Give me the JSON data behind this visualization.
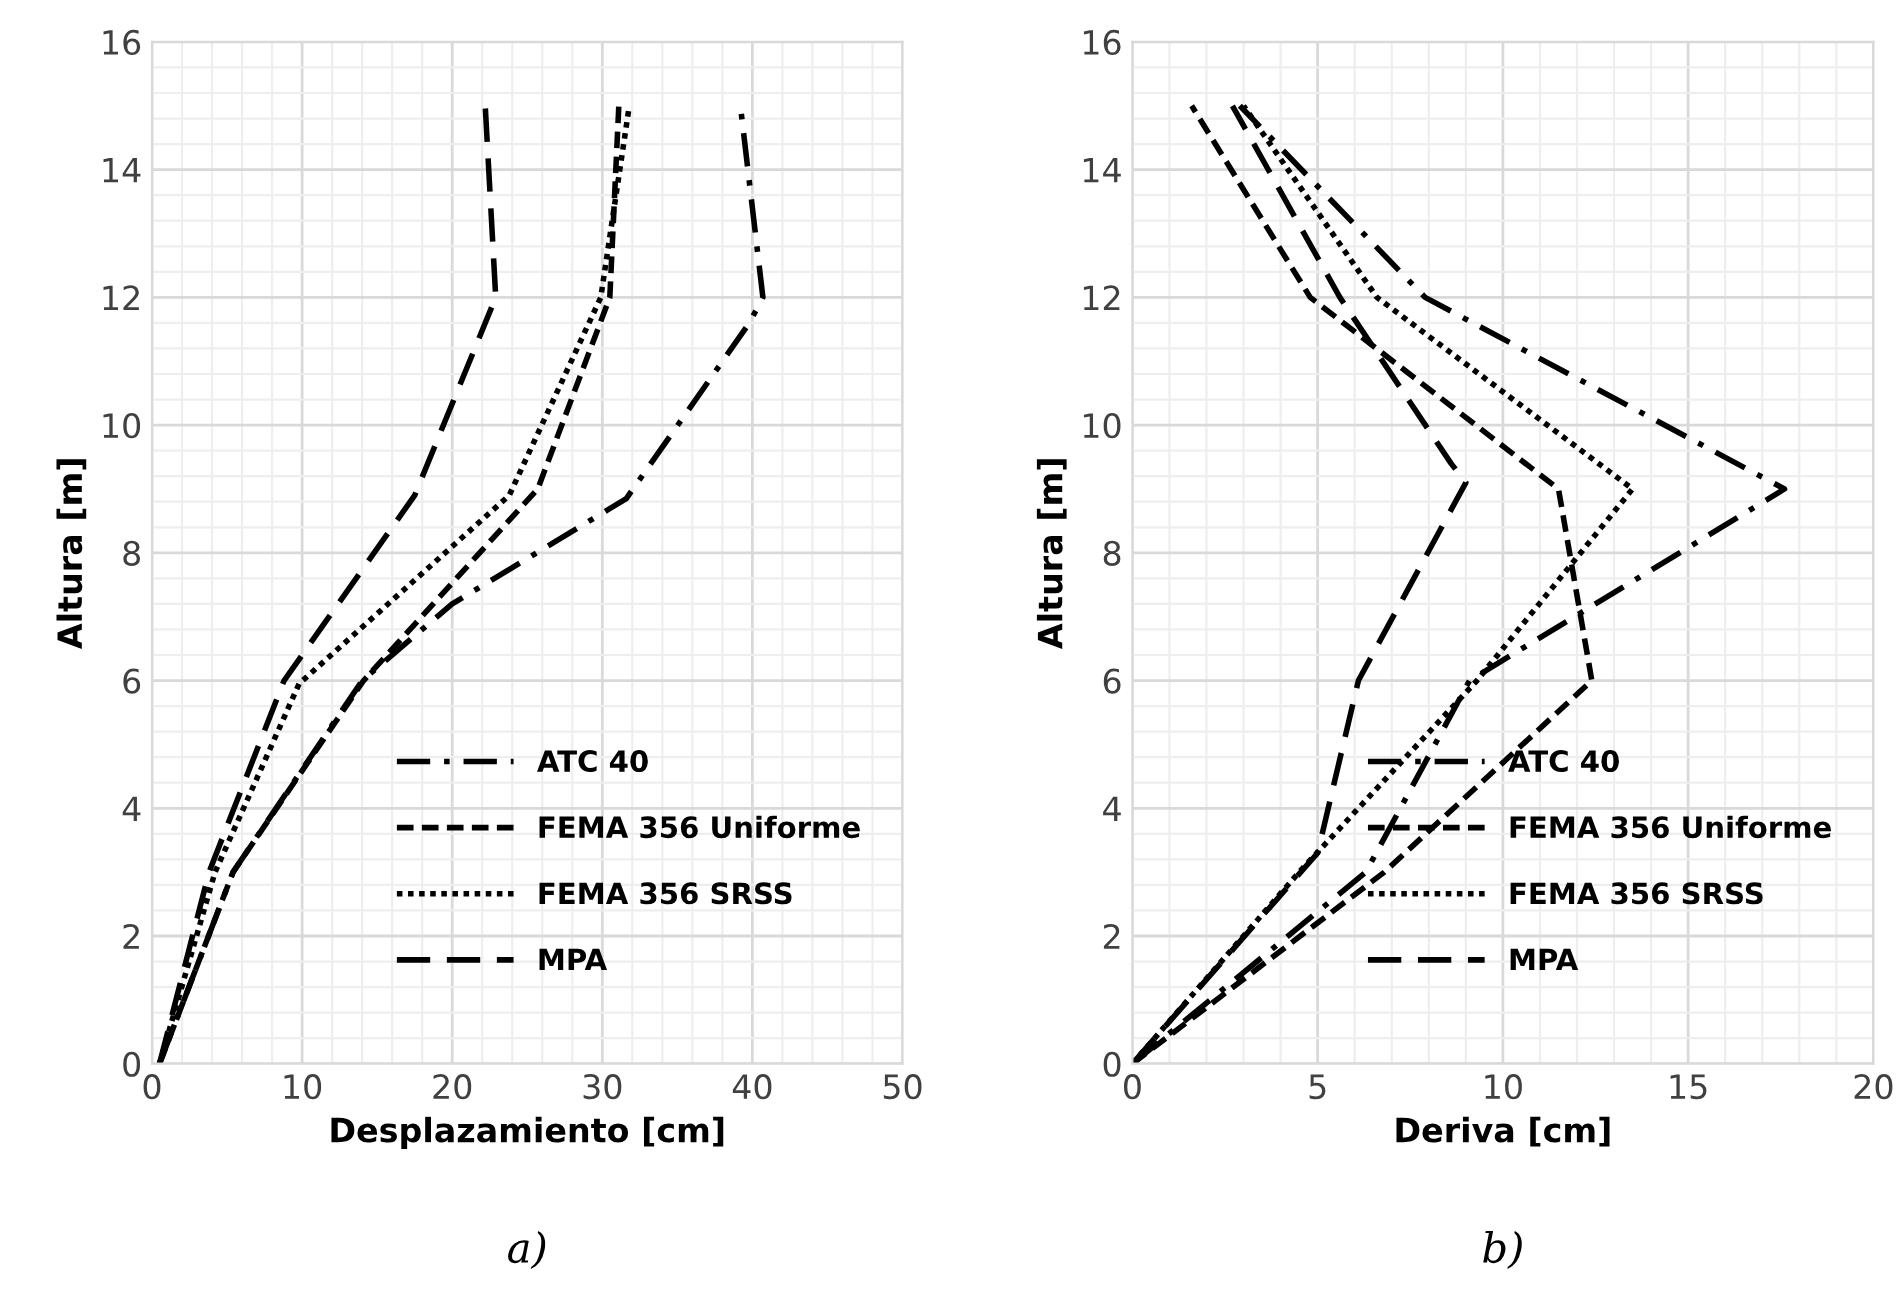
{
  "chart_data": [
    {
      "type": "line",
      "xlabel": "Desplazamiento [cm]",
      "ylabel": "Altura [m]",
      "xlim": [
        0,
        50
      ],
      "xticks": [
        0,
        10,
        20,
        30,
        40,
        50
      ],
      "ylim": [
        0,
        16
      ],
      "yticks": [
        0,
        2,
        4,
        6,
        8,
        10,
        12,
        14,
        16
      ],
      "grid": true,
      "legend": "bottom right",
      "marker": "none",
      "annotations": [
        "a)"
      ],
      "series": [
        {
          "name": "ATC 40",
          "color": "#000000",
          "line_style": "dashdot",
          "x": [
            0.5,
            5.4,
            14.0,
            20.0,
            31.6,
            39.8,
            40.7,
            39.2
          ],
          "values": [
            0,
            3,
            6,
            7.2,
            8.85,
            11.6,
            12,
            15
          ]
        },
        {
          "name": "FEMA 356 Uniforme",
          "color": "#000000",
          "line_style": "dashed",
          "x": [
            0.5,
            5.4,
            14.1,
            25.7,
            30.5,
            31.1
          ],
          "values": [
            0,
            3,
            6,
            9,
            12,
            15
          ]
        },
        {
          "name": "FEMA 356 SRSS",
          "color": "#000000",
          "line_style": "dotted",
          "x": [
            0.5,
            4.2,
            9.8,
            23.8,
            29.9,
            31.8
          ],
          "values": [
            0,
            3,
            5.95,
            8.9,
            12,
            15
          ]
        },
        {
          "name": "MPA",
          "color": "#000000",
          "line_style": "longdash",
          "x": [
            0.5,
            3.8,
            8.8,
            17.5,
            22.9,
            22.2
          ],
          "values": [
            0,
            3,
            6,
            8.9,
            12,
            15
          ]
        }
      ]
    },
    {
      "type": "line",
      "xlabel": "Deriva [cm]",
      "ylabel": "Altura [m]",
      "xlim": [
        0,
        20
      ],
      "xticks": [
        0,
        5,
        10,
        15,
        20
      ],
      "ylim": [
        0,
        16
      ],
      "yticks": [
        0,
        2,
        4,
        6,
        8,
        10,
        12,
        14,
        16
      ],
      "grid": true,
      "legend": "bottom right",
      "marker": "none",
      "annotations": [
        "b)"
      ],
      "series": [
        {
          "name": "ATC 40",
          "color": "#000000",
          "line_style": "dashdot",
          "x": [
            0,
            6.3,
            9.1,
            17.6,
            7.9,
            2.9
          ],
          "values": [
            0,
            3,
            6,
            9,
            12,
            15
          ]
        },
        {
          "name": "FEMA 356 Uniforme",
          "color": "#000000",
          "line_style": "dashed",
          "x": [
            0,
            6.8,
            12.4,
            11.5,
            4.8,
            1.6
          ],
          "values": [
            0,
            3,
            6,
            9,
            12,
            15
          ]
        },
        {
          "name": "FEMA 356 SRSS",
          "color": "#000000",
          "line_style": "dotted",
          "x": [
            0,
            4.5,
            9.3,
            13.5,
            6.6,
            3.0
          ],
          "values": [
            0,
            3,
            6,
            9,
            12,
            15
          ]
        },
        {
          "name": "MPA",
          "color": "#000000",
          "line_style": "longdash",
          "x": [
            0,
            5.0,
            6.1,
            9.0,
            8.6,
            5.6,
            2.7
          ],
          "values": [
            0,
            3.3,
            6,
            9.1,
            9.4,
            12,
            15
          ]
        }
      ]
    }
  ]
}
